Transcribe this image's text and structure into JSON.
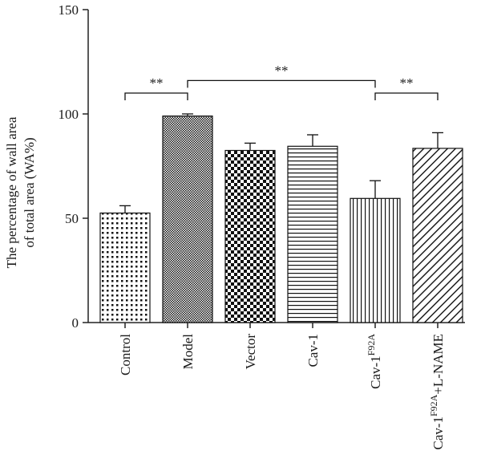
{
  "chart_data": {
    "type": "bar",
    "ylabel_line1": "The percentage of wall area",
    "ylabel_line2": "of total area (WA%)",
    "ylim": [
      0,
      150
    ],
    "yticks": [
      0,
      50,
      100,
      150
    ],
    "categories": [
      {
        "base": "Control",
        "sup": "",
        "suffix": ""
      },
      {
        "base": "Model",
        "sup": "",
        "suffix": ""
      },
      {
        "base": "Vector",
        "sup": "",
        "suffix": ""
      },
      {
        "base": "Cav-1",
        "sup": "",
        "suffix": ""
      },
      {
        "base": "Cav-1",
        "sup": "F92A",
        "suffix": ""
      },
      {
        "base": "Cav-1",
        "sup": "F92A",
        "suffix": "+L-NAME"
      }
    ],
    "values": [
      52.5,
      99,
      82.5,
      84.5,
      59.5,
      83.5
    ],
    "errors": [
      3.5,
      1,
      3.5,
      5.5,
      8.5,
      7.5
    ],
    "patterns": [
      "dots",
      "fine-check",
      "checker",
      "horizontal-lines",
      "vertical-lines",
      "diagonal-lines"
    ],
    "significance": [
      {
        "from": 0,
        "to": 1,
        "label": "**",
        "level": 110
      },
      {
        "from": 1,
        "to": 4,
        "label": "**",
        "level": 116
      },
      {
        "from": 4,
        "to": 5,
        "label": "**",
        "level": 110
      }
    ],
    "grid": false,
    "legend": "none"
  }
}
